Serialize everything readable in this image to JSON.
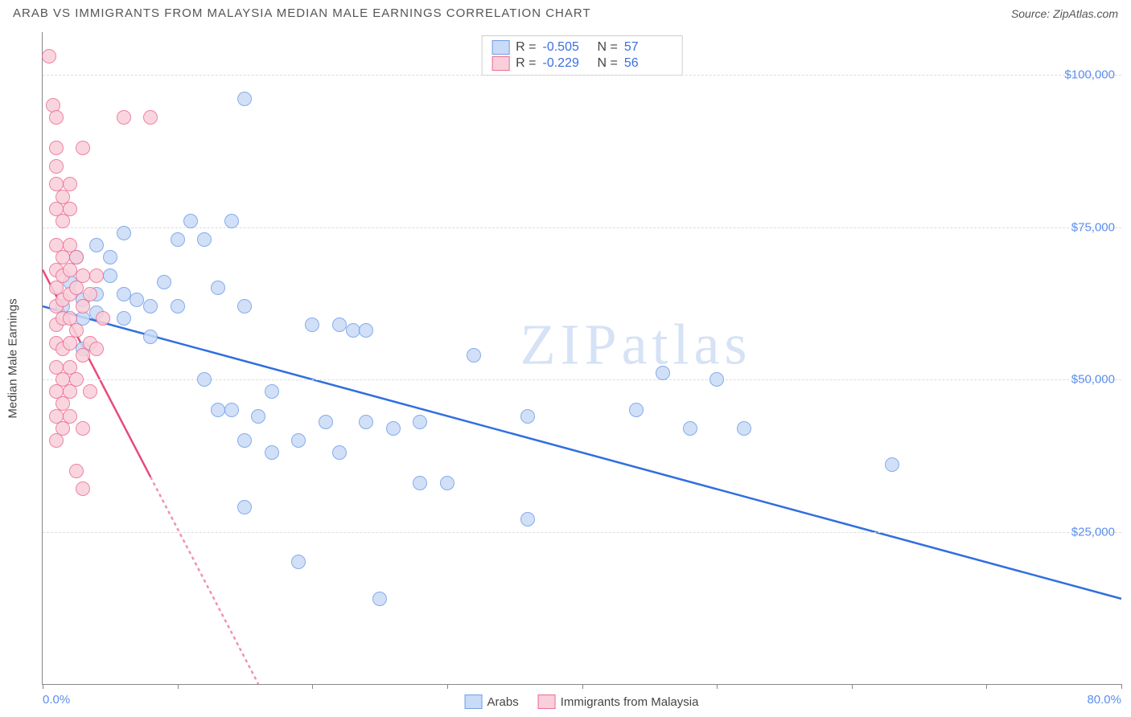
{
  "header": {
    "title": "ARAB VS IMMIGRANTS FROM MALAYSIA MEDIAN MALE EARNINGS CORRELATION CHART",
    "source_prefix": "Source: ",
    "source_name": "ZipAtlas.com"
  },
  "watermark": "ZIPatlas",
  "chart": {
    "type": "scatter",
    "y_axis_title": "Median Male Earnings",
    "xlim": [
      0,
      80
    ],
    "ylim": [
      0,
      107000
    ],
    "x_tick_positions": [
      0,
      10,
      20,
      30,
      40,
      50,
      60,
      70,
      80
    ],
    "x_axis_start_label": "0.0%",
    "x_axis_end_label": "80.0%",
    "y_ticks": [
      {
        "v": 25000,
        "label": "$25,000"
      },
      {
        "v": 50000,
        "label": "$50,000"
      },
      {
        "v": 75000,
        "label": "$75,000"
      },
      {
        "v": 100000,
        "label": "$100,000"
      }
    ],
    "background_color": "#ffffff",
    "grid_color": "#dddddd",
    "axis_color": "#888888",
    "tick_label_color": "#5b8def",
    "marker_radius": 9,
    "marker_stroke_width": 1,
    "series": [
      {
        "name": "Arabs",
        "fill": "#c9dbf6",
        "stroke": "#6f9ee8",
        "line_color": "#2f6fe0",
        "line_width": 2.5,
        "line_dash": "none",
        "R": "-0.505",
        "N": "57",
        "trend": {
          "x1": 0,
          "y1": 62000,
          "x2": 80,
          "y2": 14000
        },
        "points": [
          [
            1.5,
            62000
          ],
          [
            2,
            66000
          ],
          [
            2.5,
            70000
          ],
          [
            3,
            63000
          ],
          [
            3,
            60000
          ],
          [
            3,
            55000
          ],
          [
            4,
            72000
          ],
          [
            4,
            64000
          ],
          [
            4,
            61000
          ],
          [
            5,
            67000
          ],
          [
            5,
            70000
          ],
          [
            6,
            74000
          ],
          [
            6,
            64000
          ],
          [
            6,
            60000
          ],
          [
            7,
            63000
          ],
          [
            8,
            62000
          ],
          [
            8,
            57000
          ],
          [
            9,
            66000
          ],
          [
            10,
            73000
          ],
          [
            10,
            62000
          ],
          [
            11,
            76000
          ],
          [
            12,
            73000
          ],
          [
            12,
            50000
          ],
          [
            13,
            65000
          ],
          [
            13,
            45000
          ],
          [
            14,
            76000
          ],
          [
            14,
            45000
          ],
          [
            15,
            62000
          ],
          [
            15,
            40000
          ],
          [
            15,
            29000
          ],
          [
            15,
            96000
          ],
          [
            16,
            44000
          ],
          [
            17,
            48000
          ],
          [
            17,
            38000
          ],
          [
            19,
            40000
          ],
          [
            19,
            20000
          ],
          [
            20,
            59000
          ],
          [
            21,
            43000
          ],
          [
            22,
            59000
          ],
          [
            22,
            38000
          ],
          [
            23,
            58000
          ],
          [
            24,
            58000
          ],
          [
            24,
            43000
          ],
          [
            25,
            14000
          ],
          [
            26,
            42000
          ],
          [
            28,
            43000
          ],
          [
            28,
            33000
          ],
          [
            30,
            33000
          ],
          [
            32,
            54000
          ],
          [
            36,
            44000
          ],
          [
            36,
            27000
          ],
          [
            44,
            45000
          ],
          [
            46,
            51000
          ],
          [
            48,
            42000
          ],
          [
            50,
            50000
          ],
          [
            52,
            42000
          ],
          [
            63,
            36000
          ]
        ]
      },
      {
        "name": "Immigants from Malaysia",
        "display_name": "Immigrants from Malaysia",
        "fill": "#f8cfda",
        "stroke": "#ec6d92",
        "line_color": "#e84a7a",
        "line_width": 2.5,
        "line_dash": "4 4",
        "solid_until": 8,
        "R": "-0.229",
        "N": "56",
        "trend": {
          "x1": 0,
          "y1": 68000,
          "x2": 16,
          "y2": 0
        },
        "points": [
          [
            0.5,
            103000
          ],
          [
            0.8,
            95000
          ],
          [
            1,
            93000
          ],
          [
            1,
            88000
          ],
          [
            1,
            85000
          ],
          [
            1,
            82000
          ],
          [
            1,
            78000
          ],
          [
            1,
            72000
          ],
          [
            1,
            68000
          ],
          [
            1,
            65000
          ],
          [
            1,
            62000
          ],
          [
            1,
            59000
          ],
          [
            1,
            56000
          ],
          [
            1,
            52000
          ],
          [
            1,
            48000
          ],
          [
            1,
            44000
          ],
          [
            1,
            40000
          ],
          [
            1.5,
            80000
          ],
          [
            1.5,
            76000
          ],
          [
            1.5,
            70000
          ],
          [
            1.5,
            67000
          ],
          [
            1.5,
            63000
          ],
          [
            1.5,
            60000
          ],
          [
            1.5,
            55000
          ],
          [
            1.5,
            50000
          ],
          [
            1.5,
            46000
          ],
          [
            1.5,
            42000
          ],
          [
            2,
            82000
          ],
          [
            2,
            78000
          ],
          [
            2,
            72000
          ],
          [
            2,
            68000
          ],
          [
            2,
            64000
          ],
          [
            2,
            60000
          ],
          [
            2,
            56000
          ],
          [
            2,
            52000
          ],
          [
            2,
            48000
          ],
          [
            2,
            44000
          ],
          [
            2.5,
            70000
          ],
          [
            2.5,
            65000
          ],
          [
            2.5,
            58000
          ],
          [
            2.5,
            50000
          ],
          [
            2.5,
            35000
          ],
          [
            3,
            67000
          ],
          [
            3,
            62000
          ],
          [
            3,
            54000
          ],
          [
            3,
            42000
          ],
          [
            3,
            32000
          ],
          [
            3.5,
            64000
          ],
          [
            3.5,
            56000
          ],
          [
            3.5,
            48000
          ],
          [
            4,
            67000
          ],
          [
            4,
            55000
          ],
          [
            4.5,
            60000
          ],
          [
            6,
            93000
          ],
          [
            8,
            93000
          ],
          [
            3,
            88000
          ]
        ]
      }
    ],
    "legend": {
      "series1_label": "Arabs",
      "series2_label": "Immigrants from Malaysia"
    },
    "stats_labels": {
      "R": "R =",
      "N": "N ="
    }
  }
}
